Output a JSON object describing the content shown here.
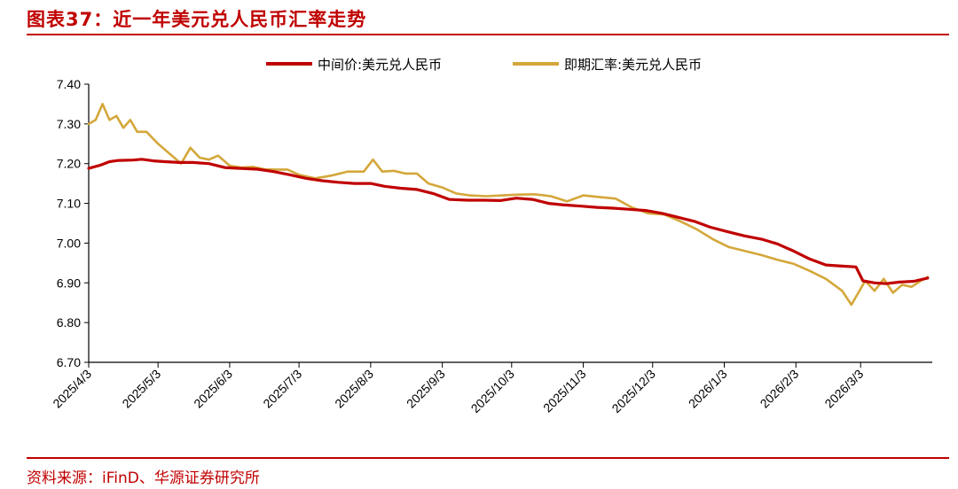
{
  "header": {
    "title": "图表37：近一年美元兑人民币汇率走势"
  },
  "footer": {
    "source": "资料来源：iFinD、华源证券研究所"
  },
  "colors": {
    "accent": "#c00000",
    "central": "#c00000",
    "spot": "#d4a73a"
  },
  "chart_data": {
    "type": "line",
    "ylim": [
      6.7,
      7.4
    ],
    "yticks": [
      "7.40",
      "7.30",
      "7.20",
      "7.10",
      "7.00",
      "6.90",
      "6.80",
      "6.70"
    ],
    "ytick_values": [
      7.4,
      7.3,
      7.2,
      7.1,
      7.0,
      6.9,
      6.8,
      6.7
    ],
    "xlim": [
      "2025-04-03",
      "2026-04-03"
    ],
    "xticks": [
      "2025/4/3",
      "2025/5/3",
      "2025/6/3",
      "2025/7/3",
      "2025/8/3",
      "2025/9/3",
      "2025/10/3",
      "2025/11/3",
      "2025/12/3",
      "2026/1/3",
      "2026/2/3",
      "2026/3/3"
    ],
    "xtick_dates": [
      "2025-04-03",
      "2025-05-03",
      "2025-06-03",
      "2025-07-03",
      "2025-08-03",
      "2025-09-03",
      "2025-10-03",
      "2025-11-03",
      "2025-12-03",
      "2026-01-03",
      "2026-02-03",
      "2026-03-03"
    ],
    "legend_position": "top-center",
    "series": [
      {
        "name": "中间价:美元兑人民币",
        "color": "#c00000",
        "points": [
          [
            "2025-04-03",
            7.188
          ],
          [
            "2025-04-08",
            7.196
          ],
          [
            "2025-04-12",
            7.205
          ],
          [
            "2025-04-16",
            7.208
          ],
          [
            "2025-04-22",
            7.209
          ],
          [
            "2025-04-26",
            7.211
          ],
          [
            "2025-05-01",
            7.207
          ],
          [
            "2025-05-06",
            7.205
          ],
          [
            "2025-05-12",
            7.203
          ],
          [
            "2025-05-18",
            7.203
          ],
          [
            "2025-05-25",
            7.2
          ],
          [
            "2025-06-01",
            7.19
          ],
          [
            "2025-06-08",
            7.188
          ],
          [
            "2025-06-15",
            7.186
          ],
          [
            "2025-06-22",
            7.18
          ],
          [
            "2025-06-29",
            7.172
          ],
          [
            "2025-07-06",
            7.163
          ],
          [
            "2025-07-13",
            7.157
          ],
          [
            "2025-07-20",
            7.153
          ],
          [
            "2025-07-27",
            7.15
          ],
          [
            "2025-08-03",
            7.15
          ],
          [
            "2025-08-09",
            7.143
          ],
          [
            "2025-08-16",
            7.138
          ],
          [
            "2025-08-23",
            7.135
          ],
          [
            "2025-08-30",
            7.125
          ],
          [
            "2025-09-06",
            7.11
          ],
          [
            "2025-09-14",
            7.108
          ],
          [
            "2025-09-21",
            7.108
          ],
          [
            "2025-09-28",
            7.107
          ],
          [
            "2025-10-05",
            7.113
          ],
          [
            "2025-10-12",
            7.11
          ],
          [
            "2025-10-19",
            7.1
          ],
          [
            "2025-10-26",
            7.096
          ],
          [
            "2025-11-02",
            7.093
          ],
          [
            "2025-11-09",
            7.09
          ],
          [
            "2025-11-16",
            7.088
          ],
          [
            "2025-11-23",
            7.085
          ],
          [
            "2025-11-30",
            7.082
          ],
          [
            "2025-12-07",
            7.075
          ],
          [
            "2025-12-14",
            7.065
          ],
          [
            "2025-12-21",
            7.055
          ],
          [
            "2025-12-28",
            7.04
          ],
          [
            "2026-01-05",
            7.028
          ],
          [
            "2026-01-12",
            7.018
          ],
          [
            "2026-01-19",
            7.01
          ],
          [
            "2026-01-26",
            6.998
          ],
          [
            "2026-02-02",
            6.98
          ],
          [
            "2026-02-09",
            6.96
          ],
          [
            "2026-02-16",
            6.945
          ],
          [
            "2026-02-23",
            6.942
          ],
          [
            "2026-03-01",
            6.94
          ],
          [
            "2026-03-04",
            6.905
          ],
          [
            "2026-03-09",
            6.9
          ],
          [
            "2026-03-14",
            6.898
          ],
          [
            "2026-03-20",
            6.902
          ],
          [
            "2026-03-26",
            6.904
          ],
          [
            "2026-04-01",
            6.912
          ]
        ]
      },
      {
        "name": "即期汇率:美元兑人民币",
        "color": "#d4a73a",
        "points": [
          [
            "2025-04-03",
            7.3
          ],
          [
            "2025-04-06",
            7.31
          ],
          [
            "2025-04-09",
            7.35
          ],
          [
            "2025-04-12",
            7.31
          ],
          [
            "2025-04-15",
            7.32
          ],
          [
            "2025-04-18",
            7.29
          ],
          [
            "2025-04-21",
            7.31
          ],
          [
            "2025-04-24",
            7.28
          ],
          [
            "2025-04-28",
            7.28
          ],
          [
            "2025-05-03",
            7.25
          ],
          [
            "2025-05-08",
            7.225
          ],
          [
            "2025-05-13",
            7.2
          ],
          [
            "2025-05-17",
            7.24
          ],
          [
            "2025-05-21",
            7.215
          ],
          [
            "2025-05-25",
            7.21
          ],
          [
            "2025-05-29",
            7.22
          ],
          [
            "2025-06-03",
            7.195
          ],
          [
            "2025-06-08",
            7.19
          ],
          [
            "2025-06-13",
            7.192
          ],
          [
            "2025-06-18",
            7.186
          ],
          [
            "2025-06-23",
            7.185
          ],
          [
            "2025-06-28",
            7.185
          ],
          [
            "2025-07-03",
            7.172
          ],
          [
            "2025-07-10",
            7.163
          ],
          [
            "2025-07-17",
            7.17
          ],
          [
            "2025-07-24",
            7.18
          ],
          [
            "2025-07-31",
            7.18
          ],
          [
            "2025-08-04",
            7.21
          ],
          [
            "2025-08-08",
            7.18
          ],
          [
            "2025-08-13",
            7.182
          ],
          [
            "2025-08-18",
            7.175
          ],
          [
            "2025-08-23",
            7.175
          ],
          [
            "2025-08-28",
            7.15
          ],
          [
            "2025-09-03",
            7.14
          ],
          [
            "2025-09-09",
            7.125
          ],
          [
            "2025-09-15",
            7.12
          ],
          [
            "2025-09-22",
            7.118
          ],
          [
            "2025-09-29",
            7.12
          ],
          [
            "2025-10-06",
            7.122
          ],
          [
            "2025-10-13",
            7.123
          ],
          [
            "2025-10-20",
            7.118
          ],
          [
            "2025-10-27",
            7.105
          ],
          [
            "2025-11-03",
            7.12
          ],
          [
            "2025-11-10",
            7.116
          ],
          [
            "2025-11-17",
            7.112
          ],
          [
            "2025-11-24",
            7.09
          ],
          [
            "2025-12-01",
            7.075
          ],
          [
            "2025-12-08",
            7.072
          ],
          [
            "2025-12-15",
            7.055
          ],
          [
            "2025-12-22",
            7.035
          ],
          [
            "2025-12-29",
            7.01
          ],
          [
            "2026-01-05",
            6.99
          ],
          [
            "2026-01-12",
            6.98
          ],
          [
            "2026-01-19",
            6.97
          ],
          [
            "2026-01-26",
            6.958
          ],
          [
            "2026-02-02",
            6.948
          ],
          [
            "2026-02-09",
            6.93
          ],
          [
            "2026-02-16",
            6.91
          ],
          [
            "2026-02-23",
            6.88
          ],
          [
            "2026-02-27",
            6.845
          ],
          [
            "2026-03-02",
            6.875
          ],
          [
            "2026-03-05",
            6.905
          ],
          [
            "2026-03-09",
            6.88
          ],
          [
            "2026-03-13",
            6.91
          ],
          [
            "2026-03-17",
            6.875
          ],
          [
            "2026-03-21",
            6.895
          ],
          [
            "2026-03-25",
            6.89
          ],
          [
            "2026-03-29",
            6.905
          ],
          [
            "2026-04-01",
            6.915
          ]
        ]
      }
    ]
  }
}
